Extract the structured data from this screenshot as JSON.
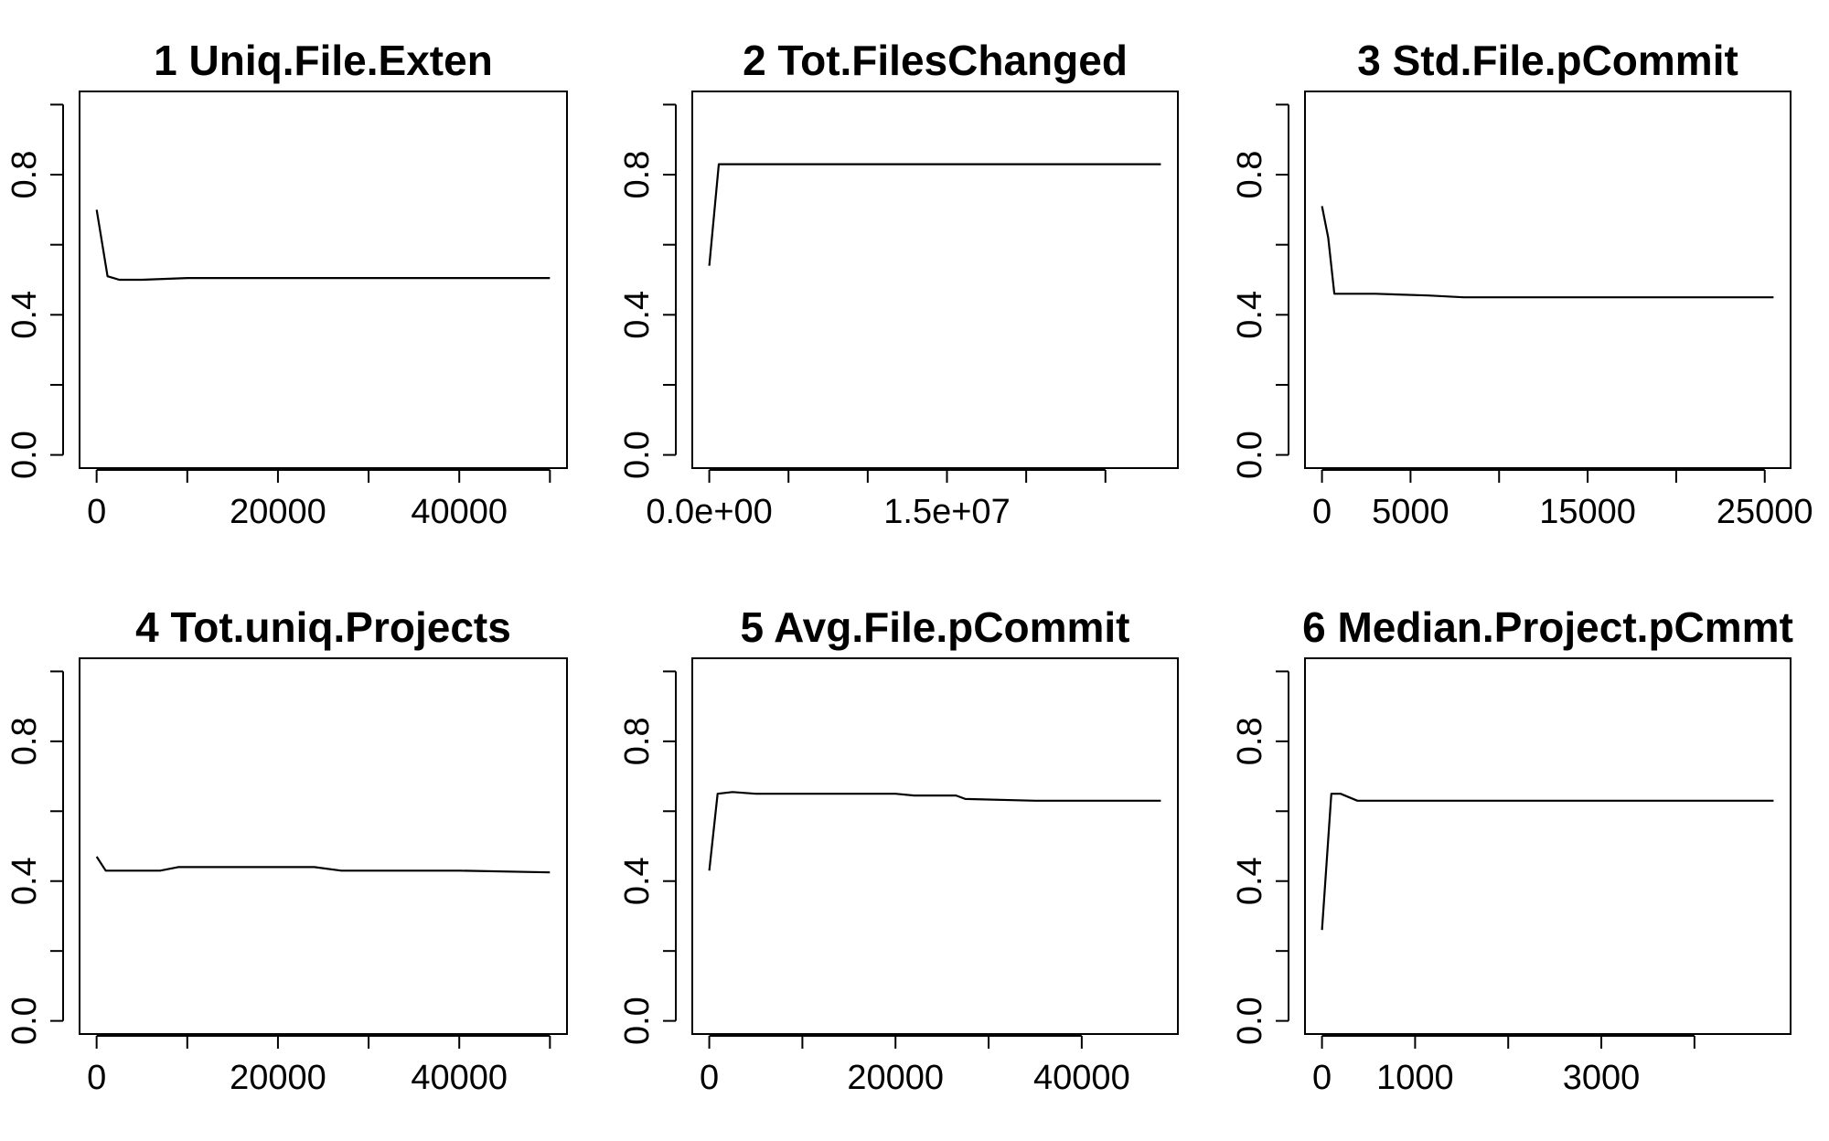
{
  "figure": {
    "background": "#ffffff",
    "line_color": "#000000"
  },
  "chart_data": [
    {
      "type": "line",
      "title": "1  Uniq.File.Exten",
      "xlabel": "",
      "ylabel": "",
      "xlim": [
        0,
        50000
      ],
      "ylim": [
        0,
        1
      ],
      "x_ticks": [
        0,
        10000,
        20000,
        30000,
        40000,
        50000
      ],
      "x_tick_labels": [
        "0",
        "",
        "20000",
        "",
        "40000",
        ""
      ],
      "y_ticks": [
        0,
        0.2,
        0.4,
        0.6,
        0.8,
        1.0
      ],
      "y_tick_labels": [
        "0.0",
        "",
        "0.4",
        "",
        "0.8",
        ""
      ],
      "grid": false,
      "series": [
        {
          "x": [
            0,
            1200,
            2500,
            5000,
            10000,
            15000,
            20000,
            30000,
            40000,
            50000
          ],
          "y": [
            0.7,
            0.51,
            0.5,
            0.5,
            0.505,
            0.505,
            0.505,
            0.505,
            0.505,
            0.505
          ]
        }
      ]
    },
    {
      "type": "line",
      "title": "2  Tot.FilesChanged",
      "xlabel": "",
      "ylabel": "",
      "xlim": [
        0,
        28500000
      ],
      "ylim": [
        0,
        1
      ],
      "x_ticks": [
        0,
        5000000,
        10000000,
        15000000,
        20000000,
        25000000
      ],
      "x_tick_labels": [
        "0.0e+00",
        "",
        "",
        "1.5e+07",
        "",
        ""
      ],
      "y_ticks": [
        0,
        0.2,
        0.4,
        0.6,
        0.8,
        1.0
      ],
      "y_tick_labels": [
        "0.0",
        "",
        "0.4",
        "",
        "0.8",
        ""
      ],
      "grid": false,
      "series": [
        {
          "x": [
            0,
            600000,
            5000000,
            15000000,
            28500000
          ],
          "y": [
            0.54,
            0.83,
            0.83,
            0.83,
            0.83
          ]
        }
      ]
    },
    {
      "type": "line",
      "title": "3  Std.File.pCommit",
      "xlabel": "",
      "ylabel": "",
      "xlim": [
        0,
        25500
      ],
      "ylim": [
        0,
        1
      ],
      "x_ticks": [
        0,
        5000,
        10000,
        15000,
        20000,
        25000
      ],
      "x_tick_labels": [
        "0",
        "5000",
        "",
        "15000",
        "",
        "25000"
      ],
      "y_ticks": [
        0,
        0.2,
        0.4,
        0.6,
        0.8,
        1.0
      ],
      "y_tick_labels": [
        "0.0",
        "",
        "0.4",
        "",
        "0.8",
        ""
      ],
      "grid": false,
      "series": [
        {
          "x": [
            0,
            350,
            700,
            3000,
            6000,
            8000,
            15000,
            20000,
            25500
          ],
          "y": [
            0.71,
            0.62,
            0.46,
            0.46,
            0.455,
            0.45,
            0.45,
            0.45,
            0.45
          ]
        }
      ]
    },
    {
      "type": "line",
      "title": "4  Tot.uniq.Projects",
      "xlabel": "",
      "ylabel": "",
      "xlim": [
        0,
        50000
      ],
      "ylim": [
        0,
        1
      ],
      "x_ticks": [
        0,
        10000,
        20000,
        30000,
        40000,
        50000
      ],
      "x_tick_labels": [
        "0",
        "",
        "20000",
        "",
        "40000",
        ""
      ],
      "y_ticks": [
        0,
        0.2,
        0.4,
        0.6,
        0.8,
        1.0
      ],
      "y_tick_labels": [
        "0.0",
        "",
        "0.4",
        "",
        "0.8",
        ""
      ],
      "grid": false,
      "series": [
        {
          "x": [
            0,
            1000,
            3000,
            7000,
            9000,
            15000,
            24000,
            27000,
            35000,
            40000,
            50000
          ],
          "y": [
            0.47,
            0.43,
            0.43,
            0.43,
            0.44,
            0.44,
            0.44,
            0.43,
            0.43,
            0.43,
            0.425
          ]
        }
      ]
    },
    {
      "type": "line",
      "title": "5  Avg.File.pCommit",
      "xlabel": "",
      "ylabel": "",
      "xlim": [
        0,
        48500
      ],
      "ylim": [
        0,
        1
      ],
      "x_ticks": [
        0,
        10000,
        20000,
        30000,
        40000
      ],
      "x_tick_labels": [
        "0",
        "",
        "20000",
        "",
        "40000"
      ],
      "y_ticks": [
        0,
        0.2,
        0.4,
        0.6,
        0.8,
        1.0
      ],
      "y_tick_labels": [
        "0.0",
        "",
        "0.4",
        "",
        "0.8",
        ""
      ],
      "grid": false,
      "series": [
        {
          "x": [
            0,
            900,
            2500,
            5000,
            10000,
            20000,
            22000,
            26500,
            27500,
            35000,
            48500
          ],
          "y": [
            0.43,
            0.65,
            0.655,
            0.65,
            0.65,
            0.65,
            0.645,
            0.645,
            0.635,
            0.63,
            0.63
          ]
        }
      ]
    },
    {
      "type": "line",
      "title": "6  Median.Project.pCmmt",
      "xlabel": "",
      "ylabel": "",
      "xlim": [
        0,
        4850
      ],
      "ylim": [
        0,
        1
      ],
      "x_ticks": [
        0,
        1000,
        2000,
        3000,
        4000
      ],
      "x_tick_labels": [
        "0",
        "1000",
        "",
        "3000",
        ""
      ],
      "y_ticks": [
        0,
        0.2,
        0.4,
        0.6,
        0.8,
        1.0
      ],
      "y_tick_labels": [
        "0.0",
        "",
        "0.4",
        "",
        "0.8",
        ""
      ],
      "grid": false,
      "series": [
        {
          "x": [
            0,
            100,
            200,
            380,
            1000,
            2000,
            3000,
            4850
          ],
          "y": [
            0.26,
            0.65,
            0.65,
            0.63,
            0.63,
            0.63,
            0.63,
            0.63
          ]
        }
      ]
    }
  ]
}
